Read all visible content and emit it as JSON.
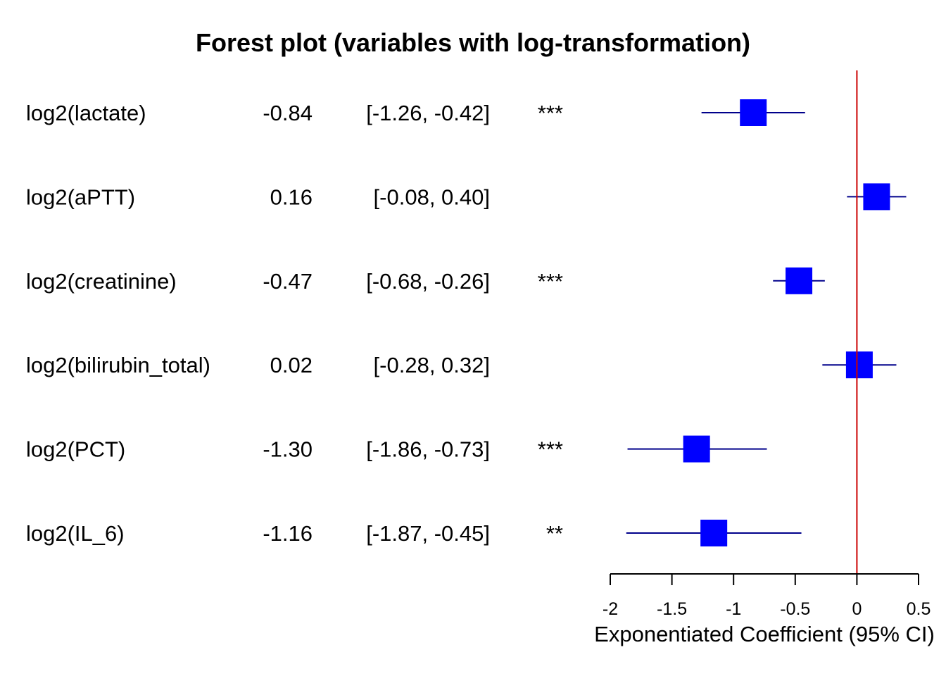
{
  "chart_data": {
    "type": "forest",
    "title": "Forest plot (variables with log-transformation)",
    "xlabel": "Exponentiated Coefficient (95% CI)",
    "xlim": [
      -2,
      0.5
    ],
    "xticks": [
      "-2",
      "-1.5",
      "-1",
      "-0.5",
      "0",
      "0.5"
    ],
    "xtick_values": [
      -2,
      -1.5,
      -1,
      -0.5,
      0,
      0.5
    ],
    "reference_line": 0,
    "colors": {
      "marker": "#0000ff",
      "ci_line": "#00008b",
      "reference": "#cc0000"
    },
    "rows": [
      {
        "label": "log2(lactate)",
        "estimate": -0.84,
        "est_text": "-0.84",
        "ci_low": -1.26,
        "ci_high": -0.42,
        "ci_text": "[-1.26, -0.42]",
        "sig": "***"
      },
      {
        "label": "log2(aPTT)",
        "estimate": 0.16,
        "est_text": "0.16",
        "ci_low": -0.08,
        "ci_high": 0.4,
        "ci_text": "[-0.08, 0.40]",
        "sig": ""
      },
      {
        "label": "log2(creatinine)",
        "estimate": -0.47,
        "est_text": "-0.47",
        "ci_low": -0.68,
        "ci_high": -0.26,
        "ci_text": "[-0.68, -0.26]",
        "sig": "***"
      },
      {
        "label": "log2(bilirubin_total)",
        "estimate": 0.02,
        "est_text": "0.02",
        "ci_low": -0.28,
        "ci_high": 0.32,
        "ci_text": "[-0.28, 0.32]",
        "sig": ""
      },
      {
        "label": "log2(PCT)",
        "estimate": -1.3,
        "est_text": "-1.30",
        "ci_low": -1.86,
        "ci_high": -0.73,
        "ci_text": "[-1.86, -0.73]",
        "sig": "***"
      },
      {
        "label": "log2(IL_6)",
        "estimate": -1.16,
        "est_text": "-1.16",
        "ci_low": -1.87,
        "ci_high": -0.45,
        "ci_text": "[-1.87, -0.45]",
        "sig": "**"
      }
    ]
  }
}
